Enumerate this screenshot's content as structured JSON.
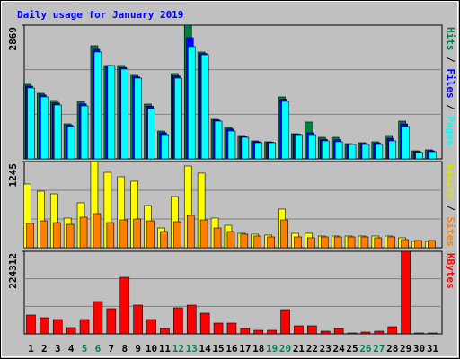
{
  "chart_data": [
    {
      "type": "bar",
      "title": "Daily usage for January 2019",
      "ylim": [
        0,
        2869
      ],
      "yticks": [
        2869
      ],
      "legend_separator": " / ",
      "series": [
        {
          "name": "Hits",
          "color": "#008040",
          "values": [
            1599,
            1406,
            1252,
            751,
            1233,
            2427,
            2003,
            2003,
            1791,
            1175,
            597,
            1830,
            2869,
            2292,
            847,
            674,
            501,
            385,
            366,
            1329,
            539,
            790,
            462,
            462,
            327,
            347,
            366,
            501,
            809,
            173,
            193
          ]
        },
        {
          "name": "Files",
          "color": "#0000ff",
          "values": [
            1560,
            1370,
            1200,
            720,
            1180,
            2350,
            1990,
            1960,
            1760,
            1130,
            560,
            1780,
            2600,
            2260,
            830,
            640,
            480,
            366,
            356,
            1280,
            530,
            560,
            420,
            410,
            318,
            328,
            337,
            440,
            750,
            154,
            173
          ]
        },
        {
          "name": "Pages",
          "color": "#00ffff",
          "values": [
            1522,
            1329,
            1156,
            693,
            1136,
            2292,
            2003,
            1926,
            1733,
            1079,
            520,
            1733,
            2408,
            2234,
            809,
            597,
            462,
            347,
            347,
            1233,
            520,
            520,
            385,
            366,
            308,
            308,
            308,
            385,
            693,
            135,
            154
          ]
        }
      ]
    },
    {
      "type": "bar",
      "ylim": [
        0,
        1245
      ],
      "yticks": [
        1245
      ],
      "legend_separator": " / ",
      "series": [
        {
          "name": "Visits",
          "color": "#ffff00",
          "values": [
            921,
            817,
            778,
            428,
            649,
            1245,
            1089,
            1025,
            960,
            610,
            285,
            739,
            1180,
            1077,
            428,
            324,
            208,
            195,
            182,
            558,
            208,
            208,
            169,
            169,
            169,
            169,
            169,
            169,
            143,
            91,
            91
          ]
        },
        {
          "name": "Sites",
          "color": "#ff8000",
          "values": [
            350,
            389,
            363,
            337,
            441,
            493,
            363,
            402,
            415,
            389,
            233,
            376,
            467,
            402,
            285,
            233,
            195,
            169,
            156,
            402,
            156,
            143,
            156,
            156,
            156,
            156,
            143,
            156,
            117,
            104,
            104
          ]
        }
      ]
    },
    {
      "type": "bar",
      "ylim": [
        0,
        224312
      ],
      "yticks": [
        224312
      ],
      "categories": [
        "1",
        "2",
        "3",
        "4",
        "5",
        "6",
        "7",
        "8",
        "9",
        "10",
        "11",
        "12",
        "13",
        "14",
        "15",
        "16",
        "17",
        "18",
        "19",
        "20",
        "21",
        "22",
        "23",
        "24",
        "25",
        "26",
        "27",
        "28",
        "29",
        "30",
        "31"
      ],
      "label_colors": [
        "#000000",
        "#000000",
        "#000000",
        "#000000",
        "#00805c",
        "#00805c",
        "#000000",
        "#000000",
        "#000000",
        "#000000",
        "#000000",
        "#00805c",
        "#00805c",
        "#000000",
        "#000000",
        "#000000",
        "#000000",
        "#000000",
        "#00805c",
        "#00805c",
        "#000000",
        "#000000",
        "#000000",
        "#000000",
        "#000000",
        "#00805c",
        "#00805c",
        "#000000",
        "#000000",
        "#000000",
        "#000000"
      ],
      "series": [
        {
          "name": "KBytes",
          "color": "#ff0000",
          "values": [
            51198,
            43884,
            39008,
            17066,
            39008,
            87768,
            68264,
            153594,
            78016,
            39008,
            14628,
            70702,
            78016,
            56074,
            29256,
            29256,
            14628,
            9752,
            9752,
            65826,
            21942,
            21942,
            7314,
            14628,
            2438,
            4876,
            7314,
            19504,
            224312,
            2438,
            2438
          ]
        }
      ]
    }
  ]
}
